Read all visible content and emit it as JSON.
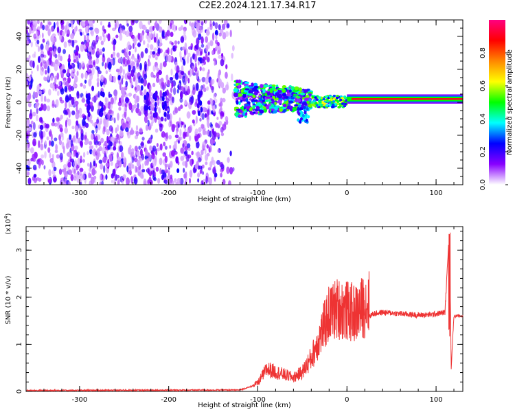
{
  "figure": {
    "title": "C2E2.2024.121.17.34.R17"
  },
  "chart_data": [
    {
      "type": "heatmap",
      "title": "C2E2.2024.121.17.34.R17",
      "xlabel": "Height of straight line (km)",
      "ylabel": "Frequency (Hz)",
      "xlim": [
        -360,
        130
      ],
      "ylim": [
        -50,
        50
      ],
      "x_ticks": [
        -300,
        -200,
        -100,
        0,
        100
      ],
      "y_ticks": [
        -40,
        -20,
        0,
        20,
        40
      ],
      "colorbar": {
        "label": "Normalized spectral amplitude",
        "range": [
          0,
          1
        ],
        "ticks": [
          0.0,
          0.2,
          0.4,
          0.6,
          0.8
        ],
        "tick_labels": [
          "0.0",
          "0.2",
          "0.4",
          "0.6",
          "0.8"
        ],
        "colors": [
          "#ffffff",
          "#8800ff",
          "#0000ff",
          "#00ffff",
          "#00ff00",
          "#ffff00",
          "#ff8800",
          "#ff0000",
          "#ff0080"
        ]
      },
      "regions": [
        {
          "x": [
            -360,
            -125
          ],
          "y": [
            -50,
            50
          ],
          "level": 0.12,
          "description": "broadband scatter"
        },
        {
          "x": [
            -125,
            -40
          ],
          "y": [
            -10,
            12
          ],
          "level": 0.45
        },
        {
          "x": [
            -40,
            0
          ],
          "y": [
            -3,
            4
          ],
          "level": 0.5
        },
        {
          "x": [
            0,
            130
          ],
          "y": [
            0,
            4
          ],
          "level": 0.9,
          "center_frequency": 2
        }
      ],
      "grid": false
    },
    {
      "type": "line",
      "xlabel": "Height of straight line (km)",
      "ylabel": "SNR (10 * v/v)",
      "y_multiplier_label": "(x10",
      "y_multiplier_exponent": "4",
      "y_multiplier_suffix": ")",
      "xlim": [
        -360,
        130
      ],
      "ylim": [
        0,
        35000
      ],
      "x_ticks": [
        -300,
        -200,
        -100,
        0,
        100
      ],
      "y_ticks": [
        0,
        10000,
        20000,
        30000
      ],
      "y_tick_labels": [
        "0",
        "1",
        "2",
        "3"
      ],
      "series": [
        {
          "color": "#ee3333",
          "envelope": [
            [
              -360,
              200
            ],
            [
              -120,
              300
            ],
            [
              -100,
              1500
            ],
            [
              -90,
              4000
            ],
            [
              -80,
              3500
            ],
            [
              -70,
              3000
            ],
            [
              -60,
              2500
            ],
            [
              -50,
              3500
            ],
            [
              -40,
              6000
            ],
            [
              -30,
              10000
            ],
            [
              -20,
              14000
            ],
            [
              -10,
              15000
            ],
            [
              0,
              14500
            ],
            [
              10,
              14000
            ],
            [
              20,
              15500
            ],
            [
              30,
              16500
            ],
            [
              40,
              16800
            ],
            [
              60,
              16500
            ],
            [
              80,
              16200
            ],
            [
              95,
              16300
            ],
            [
              110,
              16800
            ],
            [
              115,
              35000
            ],
            [
              117,
              5000
            ],
            [
              120,
              16000
            ],
            [
              130,
              16000
            ]
          ]
        }
      ],
      "grid": false
    }
  ]
}
